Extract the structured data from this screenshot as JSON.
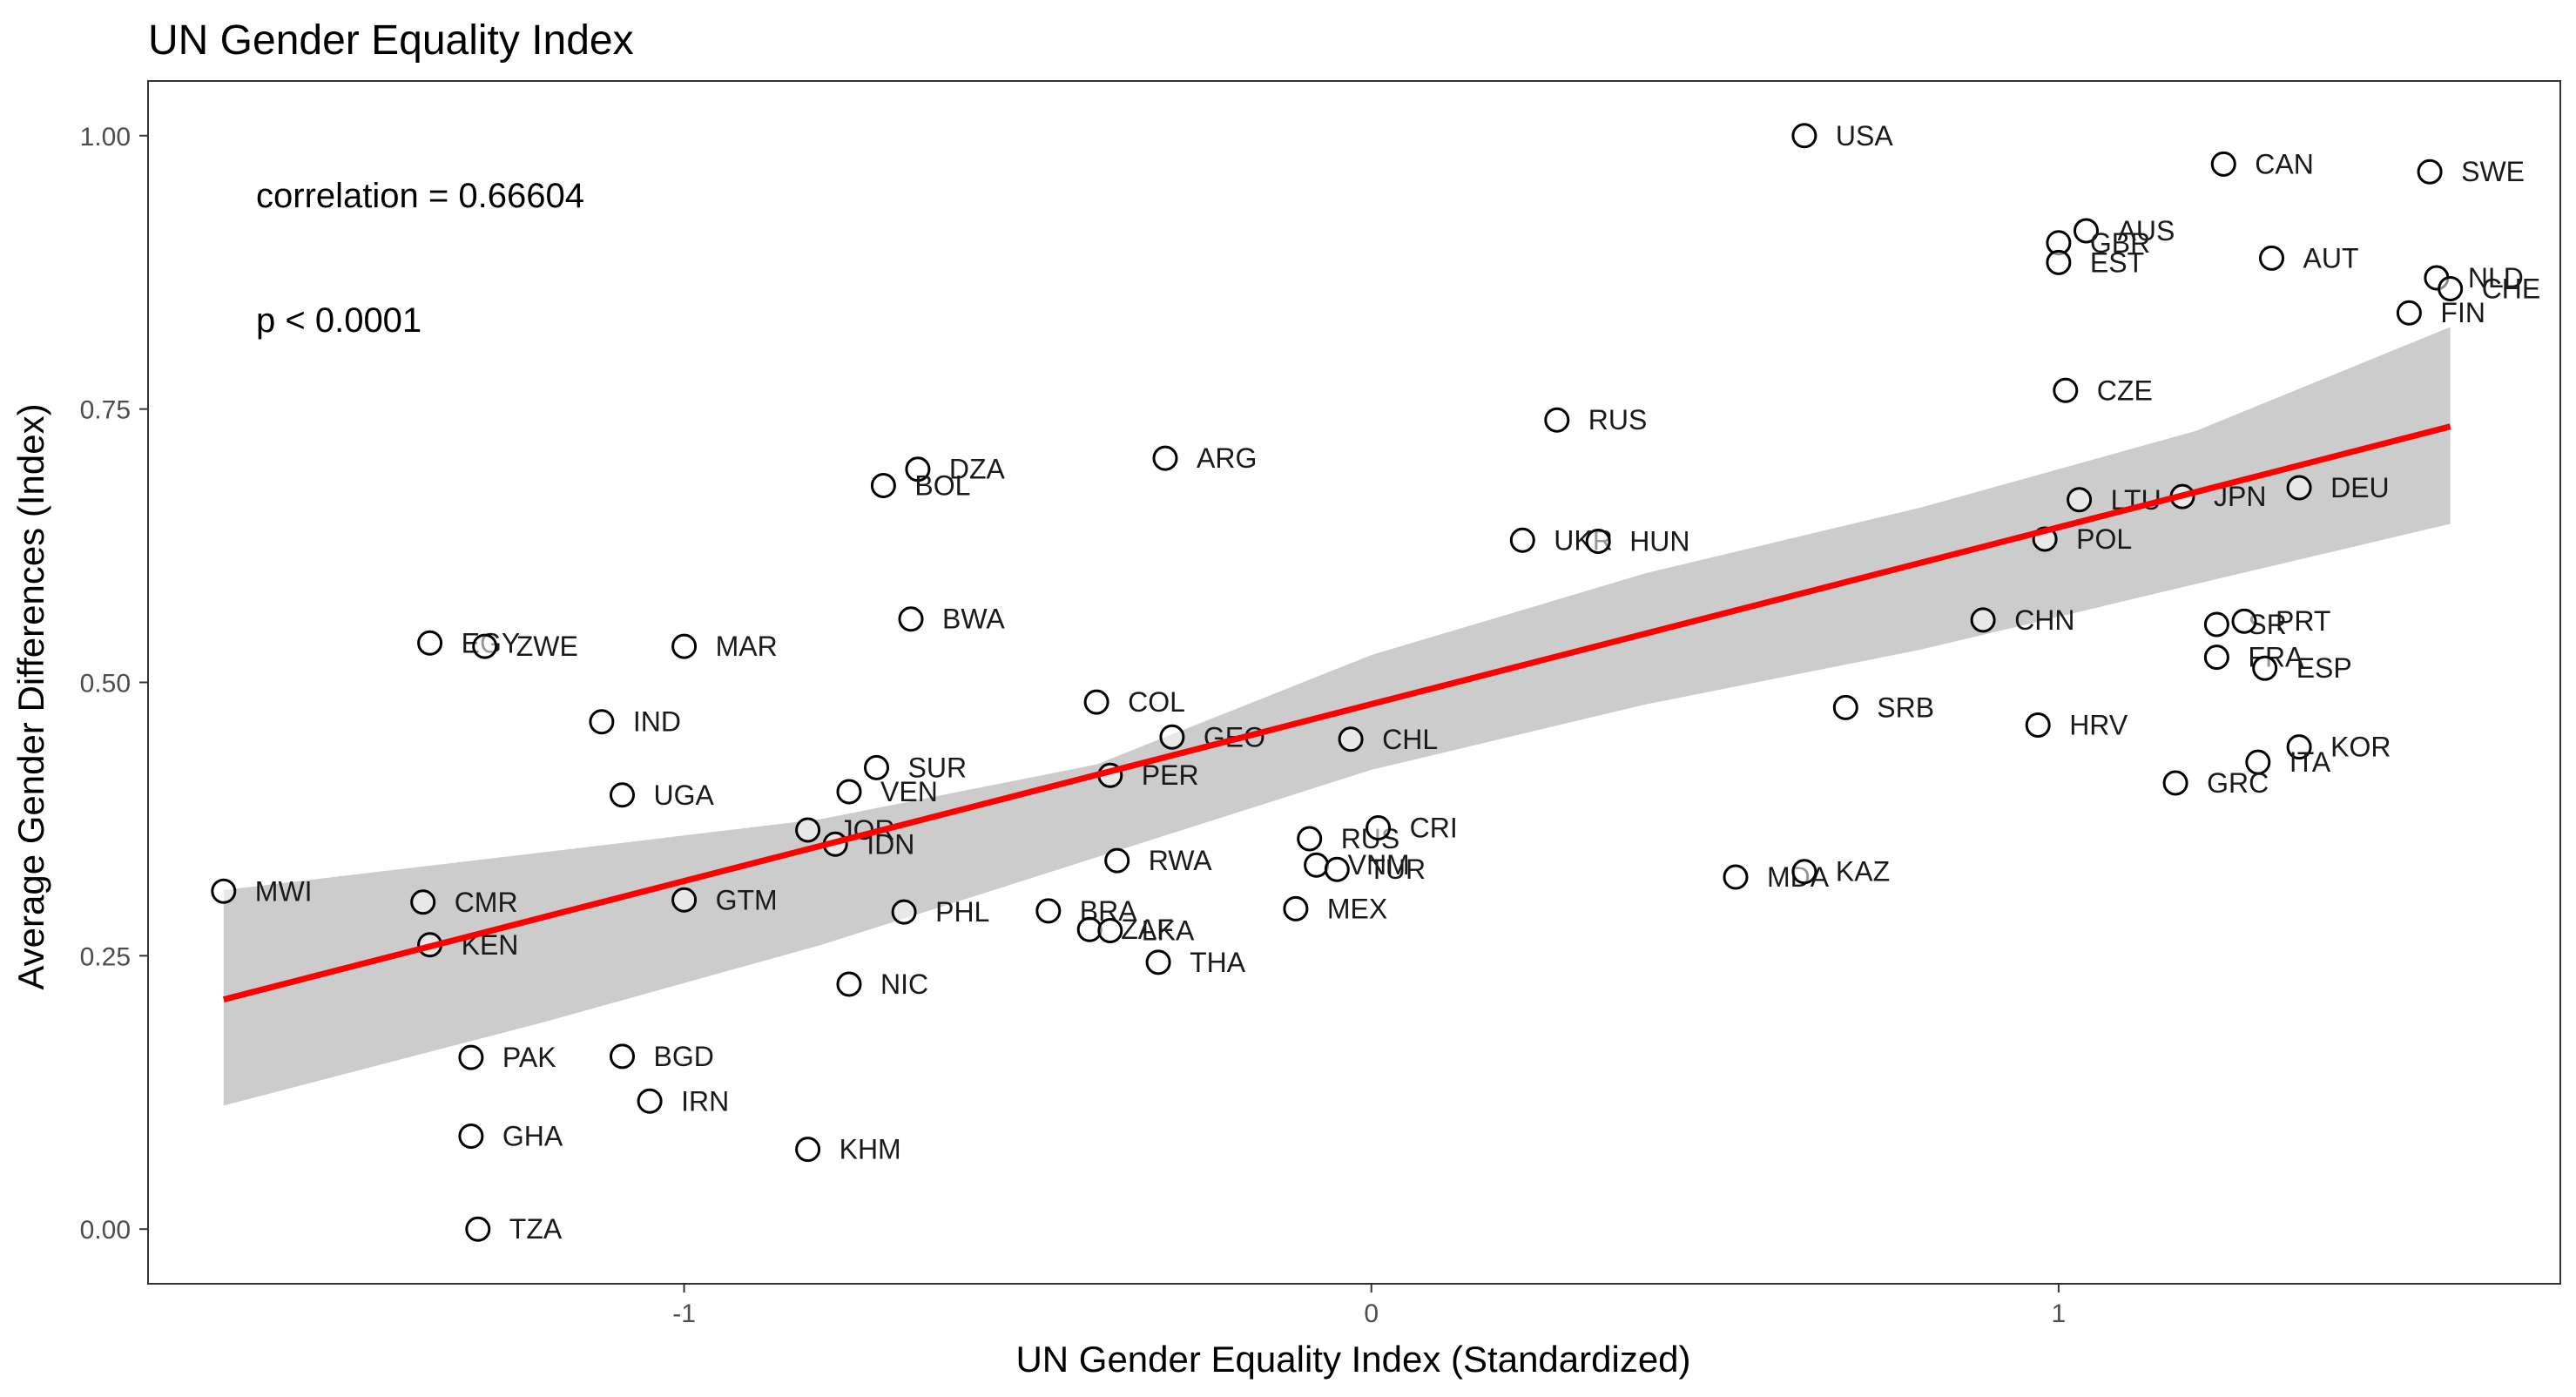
{
  "chart_data": {
    "type": "scatter",
    "title": "UN Gender Equality Index",
    "xlabel": "UN Gender Equality Index (Standardized)",
    "ylabel": "Average Gender Differences (Index)",
    "xlim": [
      -1.78,
      1.73
    ],
    "ylim": [
      -0.05,
      1.05
    ],
    "x_ticks": [
      -1,
      0,
      1
    ],
    "x_tick_labels": [
      "-1",
      "0",
      "1"
    ],
    "y_ticks": [
      0.0,
      0.25,
      0.5,
      0.75,
      1.0
    ],
    "y_tick_labels": [
      "0.00",
      "0.25",
      "0.50",
      "0.75",
      "1.00"
    ],
    "grid": false,
    "annotations": {
      "correlation": "correlation = 0.66604",
      "p_value": "p < 0.0001"
    },
    "fit_line": {
      "color": "#ff0000",
      "x": [
        -1.67,
        1.57
      ],
      "y": [
        0.21,
        0.734
      ]
    },
    "confidence_band": {
      "color": "#cccccc",
      "x": [
        -1.67,
        -1.2,
        -0.8,
        -0.4,
        0.0,
        0.4,
        0.8,
        1.2,
        1.57
      ],
      "upper": [
        0.31,
        0.345,
        0.375,
        0.425,
        0.525,
        0.6,
        0.66,
        0.73,
        0.825
      ],
      "lower": [
        0.113,
        0.19,
        0.26,
        0.34,
        0.42,
        0.48,
        0.53,
        0.59,
        0.645
      ]
    },
    "points": [
      {
        "label": "USA",
        "x": 0.63,
        "y": 1.0
      },
      {
        "label": "CAN",
        "x": 1.24,
        "y": 0.974
      },
      {
        "label": "SWE",
        "x": 1.54,
        "y": 0.967
      },
      {
        "label": "AUS",
        "x": 1.04,
        "y": 0.913
      },
      {
        "label": "GBR",
        "x": 1.0,
        "y": 0.902
      },
      {
        "label": "EST",
        "x": 1.0,
        "y": 0.884
      },
      {
        "label": "AUT",
        "x": 1.31,
        "y": 0.888
      },
      {
        "label": "NLD",
        "x": 1.55,
        "y": 0.87
      },
      {
        "label": "CHE",
        "x": 1.57,
        "y": 0.86
      },
      {
        "label": "FIN",
        "x": 1.51,
        "y": 0.838
      },
      {
        "label": "CZE",
        "x": 1.01,
        "y": 0.767
      },
      {
        "label": "RUS",
        "x": 0.27,
        "y": 0.74
      },
      {
        "label": "DZA",
        "x": -0.66,
        "y": 0.695
      },
      {
        "label": "BOL",
        "x": -0.71,
        "y": 0.68
      },
      {
        "label": "ARG",
        "x": -0.3,
        "y": 0.705
      },
      {
        "label": "LTU",
        "x": 1.03,
        "y": 0.667
      },
      {
        "label": "JPN",
        "x": 1.18,
        "y": 0.67
      },
      {
        "label": "DEU",
        "x": 1.35,
        "y": 0.678
      },
      {
        "label": "UKR",
        "x": 0.22,
        "y": 0.63
      },
      {
        "label": "HUN",
        "x": 0.33,
        "y": 0.629
      },
      {
        "label": "POL",
        "x": 0.98,
        "y": 0.631
      },
      {
        "label": "EGY",
        "x": -1.37,
        "y": 0.536
      },
      {
        "label": "ZWE",
        "x": -1.29,
        "y": 0.533
      },
      {
        "label": "MAR",
        "x": -1.0,
        "y": 0.533
      },
      {
        "label": "BWA",
        "x": -0.67,
        "y": 0.558
      },
      {
        "label": "CHN",
        "x": 0.89,
        "y": 0.557
      },
      {
        "label": "SR",
        "x": 1.23,
        "y": 0.553
      },
      {
        "label": "PRT",
        "x": 1.27,
        "y": 0.556
      },
      {
        "label": "FRA",
        "x": 1.23,
        "y": 0.523
      },
      {
        "label": "ESP",
        "x": 1.3,
        "y": 0.513
      },
      {
        "label": "IND",
        "x": -1.12,
        "y": 0.464
      },
      {
        "label": "COL",
        "x": -0.4,
        "y": 0.482
      },
      {
        "label": "GEO",
        "x": -0.29,
        "y": 0.45
      },
      {
        "label": "CHL",
        "x": -0.03,
        "y": 0.448
      },
      {
        "label": "SRB",
        "x": 0.69,
        "y": 0.477
      },
      {
        "label": "HRV",
        "x": 0.97,
        "y": 0.461
      },
      {
        "label": "KOR",
        "x": 1.35,
        "y": 0.441
      },
      {
        "label": "ITA",
        "x": 1.29,
        "y": 0.427
      },
      {
        "label": "GRC",
        "x": 1.17,
        "y": 0.408
      },
      {
        "label": "SUR",
        "x": -0.72,
        "y": 0.422
      },
      {
        "label": "PER",
        "x": -0.38,
        "y": 0.415
      },
      {
        "label": "VEN",
        "x": -0.76,
        "y": 0.4
      },
      {
        "label": "UGA",
        "x": -1.09,
        "y": 0.397
      },
      {
        "label": "JOR",
        "x": -0.82,
        "y": 0.365
      },
      {
        "label": "IDN",
        "x": -0.78,
        "y": 0.352
      },
      {
        "label": "RUS",
        "x": -0.09,
        "y": 0.357
      },
      {
        "label": "CRI",
        "x": 0.01,
        "y": 0.367
      },
      {
        "label": "VNM",
        "x": -0.08,
        "y": 0.333
      },
      {
        "label": "TUR",
        "x": -0.05,
        "y": 0.329
      },
      {
        "label": "RWA",
        "x": -0.37,
        "y": 0.337
      },
      {
        "label": "MDA",
        "x": 0.53,
        "y": 0.322
      },
      {
        "label": "KAZ",
        "x": 0.63,
        "y": 0.327
      },
      {
        "label": "MWI",
        "x": -1.67,
        "y": 0.309
      },
      {
        "label": "CMR",
        "x": -1.38,
        "y": 0.299
      },
      {
        "label": "GTM",
        "x": -1.0,
        "y": 0.301
      },
      {
        "label": "PHL",
        "x": -0.68,
        "y": 0.29
      },
      {
        "label": "BRA",
        "x": -0.47,
        "y": 0.291
      },
      {
        "label": "MEX",
        "x": -0.11,
        "y": 0.293
      },
      {
        "label": "ZAF",
        "x": -0.41,
        "y": 0.274
      },
      {
        "label": "LKA",
        "x": -0.38,
        "y": 0.273
      },
      {
        "label": "KEN",
        "x": -1.37,
        "y": 0.26
      },
      {
        "label": "THA",
        "x": -0.31,
        "y": 0.244
      },
      {
        "label": "NIC",
        "x": -0.76,
        "y": 0.224
      },
      {
        "label": "PAK",
        "x": -1.31,
        "y": 0.157
      },
      {
        "label": "BGD",
        "x": -1.09,
        "y": 0.158
      },
      {
        "label": "IRN",
        "x": -1.05,
        "y": 0.117
      },
      {
        "label": "GHA",
        "x": -1.31,
        "y": 0.085
      },
      {
        "label": "KHM",
        "x": -0.82,
        "y": 0.073
      },
      {
        "label": "TZA",
        "x": -1.3,
        "y": 0.0
      }
    ]
  }
}
